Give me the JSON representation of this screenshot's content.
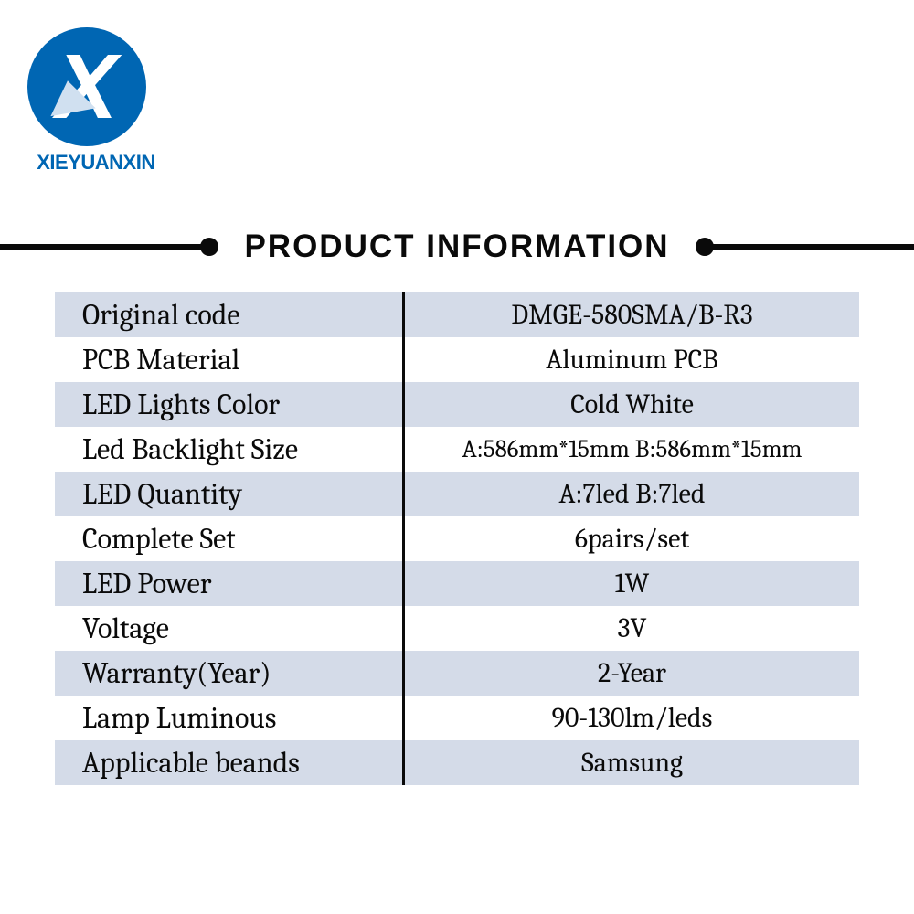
{
  "brand": "XIEYUANXIN",
  "title": "PRODUCT  INFORMATION",
  "colors": {
    "brand_blue": "#0066b3",
    "row_alt": "#d4dbe8",
    "text": "#0a0a0a",
    "background": "#ffffff"
  },
  "table": {
    "rows": [
      {
        "label": "Original code",
        "value": "DMGE-580SMA/B-R3",
        "alt": true
      },
      {
        "label": "PCB Material",
        "value": "Aluminum PCB",
        "alt": false
      },
      {
        "label": "LED Lights Color",
        "value": "Cold White",
        "alt": true
      },
      {
        "label": "Led Backlight Size",
        "value": "A:586mm*15mm B:586mm*15mm",
        "alt": false,
        "small": true
      },
      {
        "label": "LED Quantity",
        "value": "A:7led    B:7led",
        "alt": true
      },
      {
        "label": "Complete Set",
        "value": "6pairs/set",
        "alt": false
      },
      {
        "label": "LED Power",
        "value": "1W",
        "alt": true
      },
      {
        "label": "Voltage",
        "value": "3V",
        "alt": false
      },
      {
        "label": "Warranty(Year)",
        "value": "2-Year",
        "alt": true
      },
      {
        "label": "Lamp Luminous",
        "value": "90-130lm/leds",
        "alt": false
      },
      {
        "label": "Applicable beands",
        "value": "Samsung",
        "alt": true
      }
    ]
  }
}
